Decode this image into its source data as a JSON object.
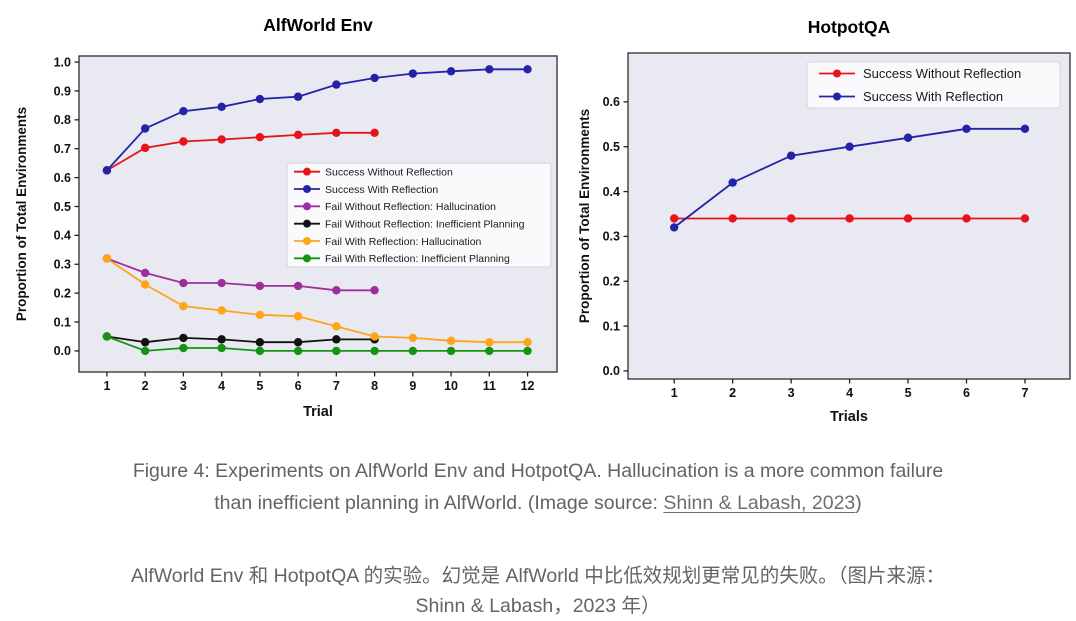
{
  "caption": {
    "en_before": "Figure 4: Experiments on AlfWorld Env and HotpotQA. Hallucination is a more common failure than inefficient planning in AlfWorld. (Image source: ",
    "en_link": "Shinn & Labash, 2023",
    "en_after": ")",
    "zh": "AlfWorld Env 和 HotpotQA 的实验。幻觉是 AlfWorld 中比低效规划更常见的失败。（图片来源：Shinn & Labash，2023 年）"
  },
  "colors": {
    "plot_background": "#e9e9f1",
    "plot_border": "#3c3c3c",
    "legend_background": "#fafafc",
    "legend_border": "#d2d2da",
    "red": "#e8121b",
    "blue": "#2323a8",
    "purple": "#9b2f9b",
    "black": "#111111",
    "orange": "#ffa41b",
    "green": "#149414"
  },
  "chart_data": [
    {
      "id": "alfworld",
      "type": "line",
      "title": "AlfWorld Env",
      "xlabel": "Trial",
      "ylabel": "Proportion of Total Environments",
      "x_ticks": [
        1,
        2,
        3,
        4,
        5,
        6,
        7,
        8,
        9,
        10,
        11,
        12
      ],
      "y_ticks": [
        0.0,
        0.1,
        0.2,
        0.3,
        0.4,
        0.5,
        0.6,
        0.7,
        0.8,
        0.9,
        1.0
      ],
      "xlim": [
        0.27,
        12.77
      ],
      "ylim": [
        -0.073,
        1.021
      ],
      "grid": false,
      "legend_position": "center-right",
      "series": [
        {
          "name": "Success Without Reflection",
          "color": "#e8121b",
          "x": [
            1,
            2,
            3,
            4,
            5,
            6,
            7,
            8
          ],
          "values": [
            0.625,
            0.703,
            0.725,
            0.732,
            0.74,
            0.748,
            0.755,
            0.755
          ]
        },
        {
          "name": "Success With Reflection",
          "color": "#2323a8",
          "x": [
            1,
            2,
            3,
            4,
            5,
            6,
            7,
            8,
            9,
            10,
            11,
            12
          ],
          "values": [
            0.625,
            0.77,
            0.83,
            0.845,
            0.872,
            0.88,
            0.922,
            0.945,
            0.96,
            0.968,
            0.975,
            0.975
          ]
        },
        {
          "name": "Fail Without Reflection: Hallucination",
          "color": "#9b2f9b",
          "x": [
            1,
            2,
            3,
            4,
            5,
            6,
            7,
            8
          ],
          "values": [
            0.32,
            0.27,
            0.235,
            0.235,
            0.225,
            0.225,
            0.21,
            0.21
          ]
        },
        {
          "name": "Fail Without Reflection: Inefficient Planning",
          "color": "#111111",
          "x": [
            1,
            2,
            3,
            4,
            5,
            6,
            7,
            8
          ],
          "values": [
            0.05,
            0.03,
            0.045,
            0.04,
            0.03,
            0.03,
            0.04,
            0.04
          ]
        },
        {
          "name": "Fail With Reflection: Hallucination",
          "color": "#ffa41b",
          "x": [
            1,
            2,
            3,
            4,
            5,
            6,
            7,
            8,
            9,
            10,
            11,
            12
          ],
          "values": [
            0.32,
            0.23,
            0.155,
            0.14,
            0.125,
            0.12,
            0.085,
            0.05,
            0.045,
            0.035,
            0.03,
            0.03
          ]
        },
        {
          "name": "Fail With Reflection: Inefficient Planning",
          "color": "#149414",
          "x": [
            1,
            2,
            3,
            4,
            5,
            6,
            7,
            8,
            9,
            10,
            11,
            12
          ],
          "values": [
            0.05,
            0.0,
            0.01,
            0.01,
            0.0,
            0.0,
            0.0,
            0.0,
            0.0,
            0.0,
            0.0,
            0.0
          ]
        }
      ]
    },
    {
      "id": "hotpotqa",
      "type": "line",
      "title": "HotpotQA",
      "xlabel": "Trials",
      "ylabel": "Proportion of Total Environments",
      "x_ticks": [
        1,
        2,
        3,
        4,
        5,
        6,
        7
      ],
      "y_ticks": [
        0.0,
        0.1,
        0.2,
        0.3,
        0.4,
        0.5,
        0.6
      ],
      "xlim": [
        0.21,
        7.77
      ],
      "ylim": [
        -0.018,
        0.709
      ],
      "grid": false,
      "legend_position": "upper-right",
      "series": [
        {
          "name": "Success Without Reflection",
          "color": "#e8121b",
          "x": [
            1,
            2,
            3,
            4,
            5,
            6,
            7
          ],
          "values": [
            0.34,
            0.34,
            0.34,
            0.34,
            0.34,
            0.34,
            0.34
          ]
        },
        {
          "name": "Success With Reflection",
          "color": "#2323a8",
          "x": [
            1,
            2,
            3,
            4,
            5,
            6,
            7
          ],
          "values": [
            0.32,
            0.42,
            0.48,
            0.5,
            0.52,
            0.54,
            0.54
          ]
        }
      ]
    }
  ]
}
